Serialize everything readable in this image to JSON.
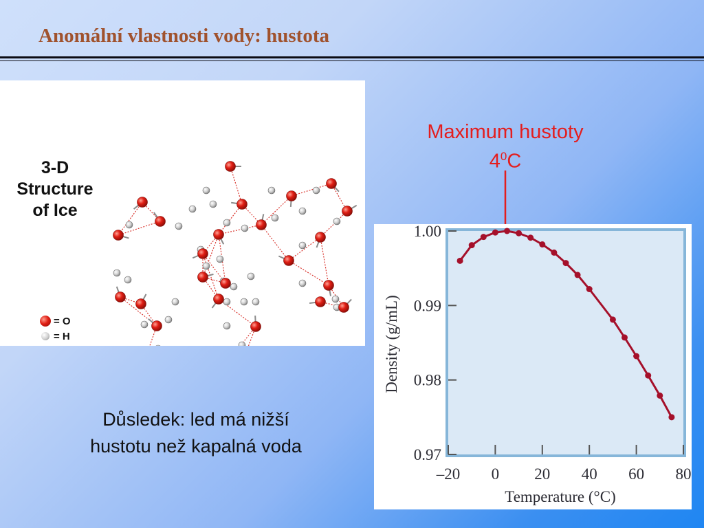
{
  "slide": {
    "title": "Anomální vlastnosti vody: hustota",
    "conclusion_line1": "Důsledek: led má nižší",
    "conclusion_line2": "hustotu než kapalná voda"
  },
  "ice_figure": {
    "caption_line1": "3-D",
    "caption_line2": "Structure",
    "caption_line3": "of Ice",
    "legend_o": "= O",
    "legend_h": "= H"
  },
  "callout": {
    "line1": "Maximum hustoty",
    "value": "4",
    "superscript": "0",
    "unit": "C",
    "color": "#e41d1d"
  },
  "chart_data": {
    "type": "line",
    "xlabel": "Temperature (°C)",
    "ylabel": "Density (g/mL)",
    "xlim": [
      -20,
      80
    ],
    "ylim": [
      0.97,
      1.0
    ],
    "x_ticks": [
      -20,
      0,
      20,
      40,
      60,
      80
    ],
    "x_tick_labels": [
      "–20",
      "0",
      "20",
      "40",
      "60",
      "80"
    ],
    "y_ticks": [
      0.97,
      0.98,
      0.99,
      1.0
    ],
    "y_tick_labels": [
      "0.97",
      "0.98",
      "0.99",
      "1.00"
    ],
    "grid": false,
    "series": [
      {
        "color": "#a5102a",
        "x": [
          -15,
          -10,
          -5,
          0,
          5,
          10,
          15,
          20,
          25,
          30,
          35,
          40,
          50,
          55,
          60,
          65,
          70,
          75
        ],
        "y": [
          0.996,
          0.9981,
          0.9992,
          0.9998,
          1.0,
          0.9997,
          0.9991,
          0.9982,
          0.9971,
          0.9957,
          0.9941,
          0.9922,
          0.9881,
          0.9857,
          0.9832,
          0.9806,
          0.9779,
          0.975
        ]
      }
    ],
    "plot_background": "#dbe9f6",
    "plot_border": "#86b6d9"
  }
}
